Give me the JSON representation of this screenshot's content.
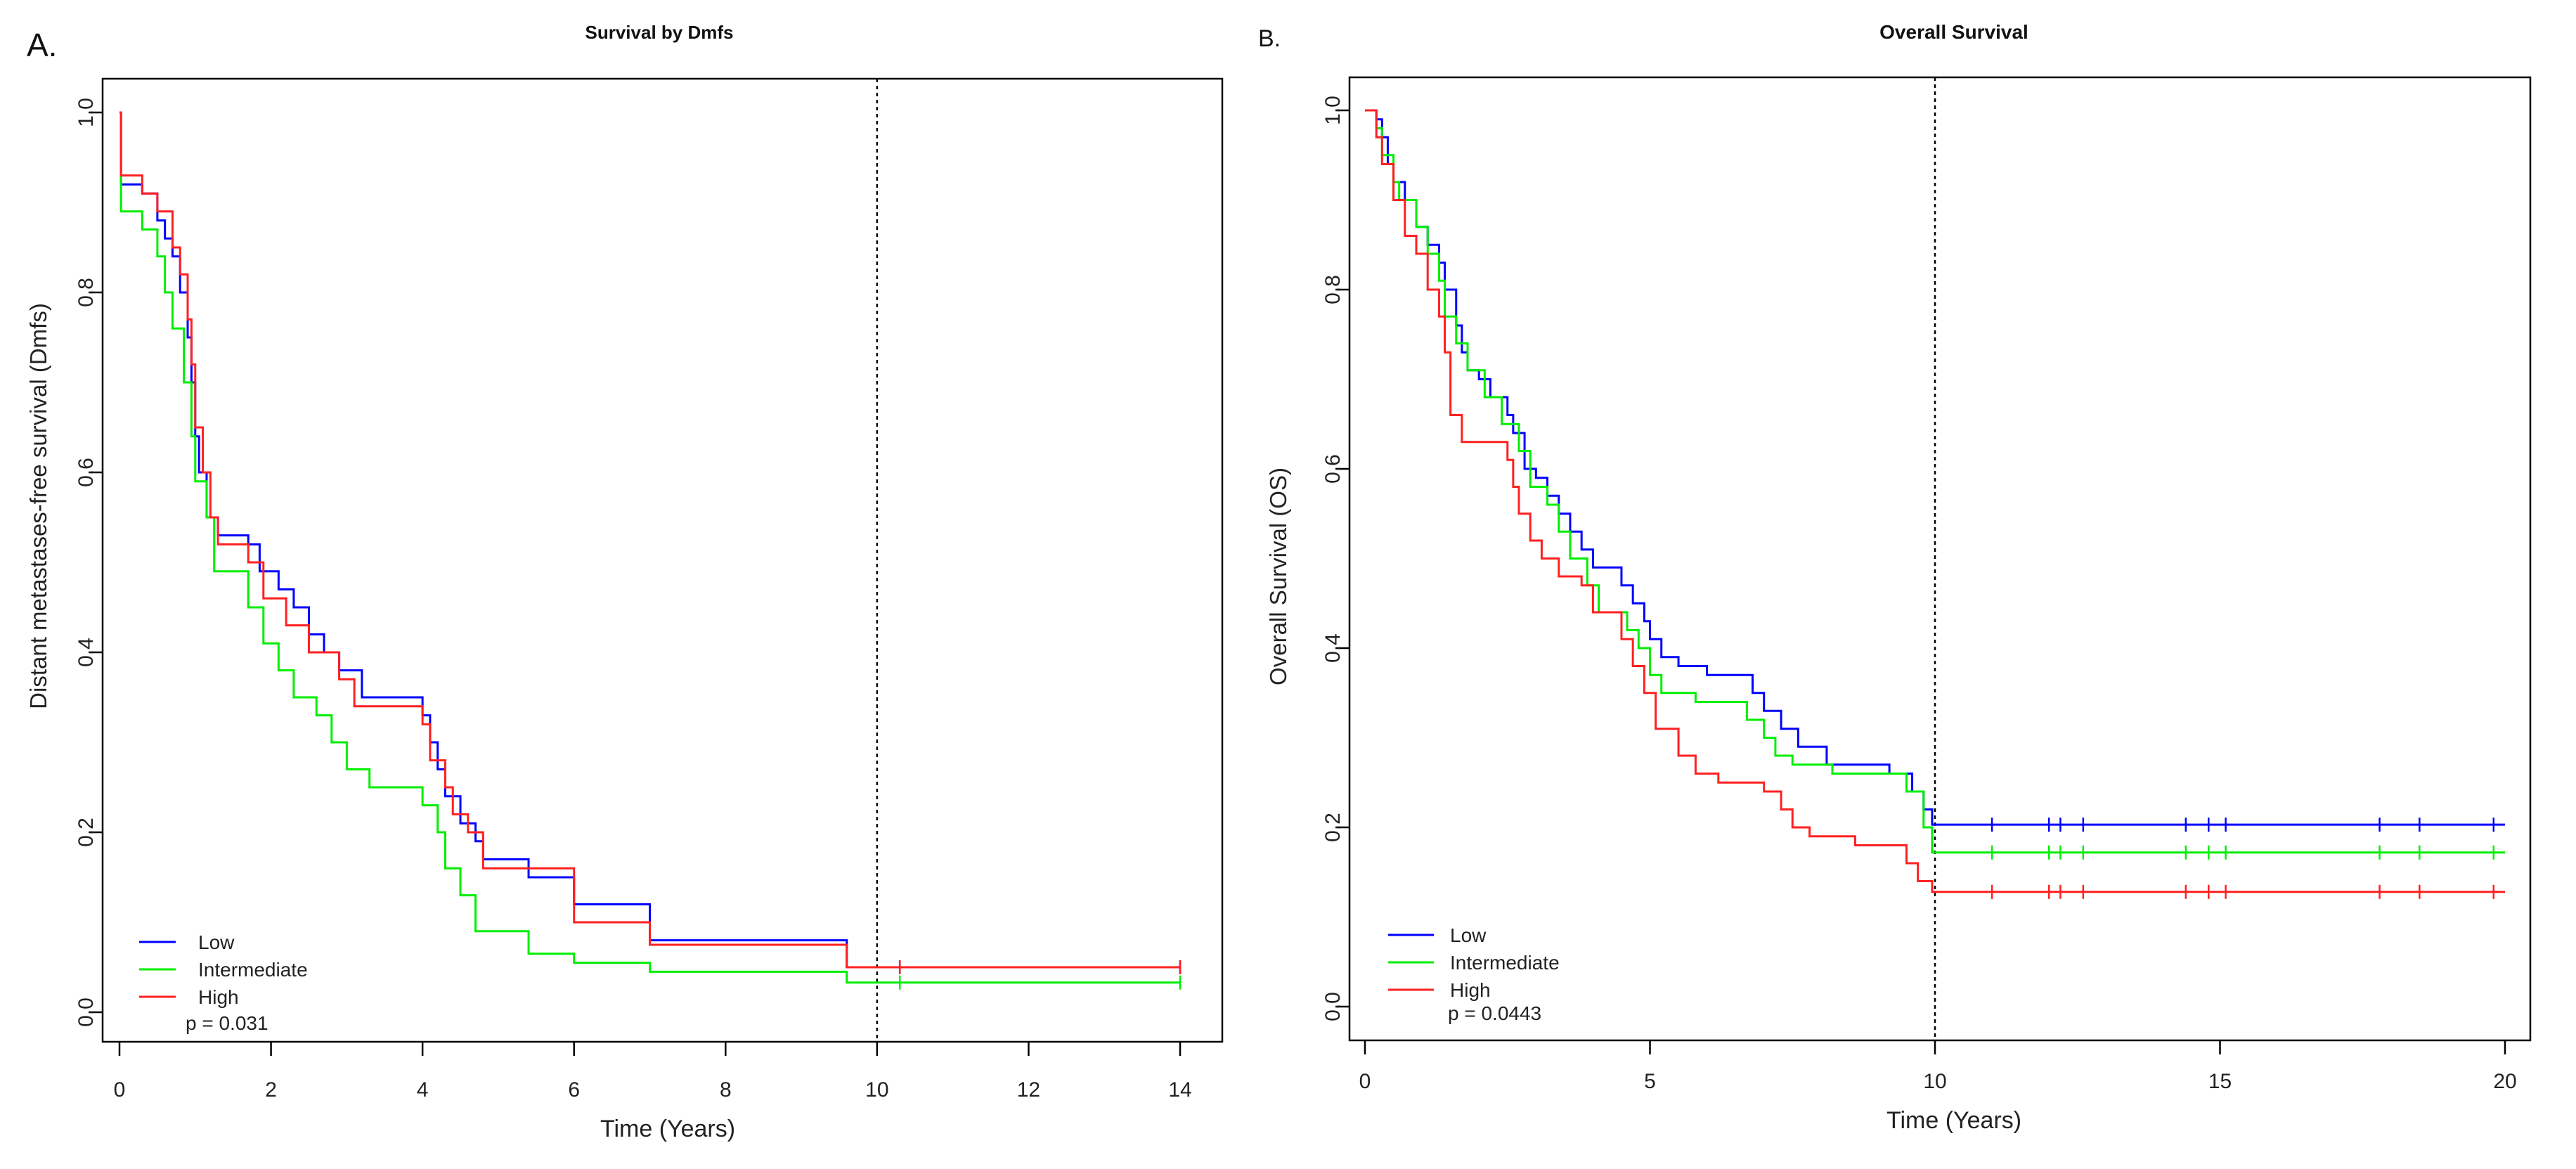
{
  "chart_data": [
    {
      "panel": "A.",
      "type": "line",
      "title": "Survival by Dmfs",
      "xlabel": "Time (Years)",
      "ylabel": "Distant metastases-free survival (Dmfs)",
      "xlim": [
        0,
        14
      ],
      "ylim": [
        0,
        1
      ],
      "xticks": [
        0,
        2,
        4,
        6,
        8,
        10,
        12,
        14
      ],
      "yticks": [
        0.0,
        0.2,
        0.4,
        0.6,
        0.8,
        1.0
      ],
      "ytick_labels": [
        "0.0",
        "0.2",
        "0.4",
        "0.6",
        "0.8",
        "1.0"
      ],
      "reference_line_x": 10,
      "grid": false,
      "legend_position": "bottom-left",
      "p_value": "p = 0.031",
      "series": [
        {
          "name": "Low",
          "color": "#0000ff",
          "steps": [
            [
              0,
              1.0
            ],
            [
              0.02,
              0.92
            ],
            [
              0.3,
              0.91
            ],
            [
              0.5,
              0.88
            ],
            [
              0.6,
              0.86
            ],
            [
              0.7,
              0.84
            ],
            [
              0.8,
              0.8
            ],
            [
              0.9,
              0.75
            ],
            [
              0.95,
              0.7
            ],
            [
              1.0,
              0.64
            ],
            [
              1.05,
              0.6
            ],
            [
              1.15,
              0.55
            ],
            [
              1.3,
              0.53
            ],
            [
              1.7,
              0.52
            ],
            [
              1.85,
              0.49
            ],
            [
              2.1,
              0.47
            ],
            [
              2.3,
              0.45
            ],
            [
              2.5,
              0.42
            ],
            [
              2.7,
              0.4
            ],
            [
              2.9,
              0.38
            ],
            [
              3.2,
              0.35
            ],
            [
              4.0,
              0.33
            ],
            [
              4.1,
              0.3
            ],
            [
              4.2,
              0.27
            ],
            [
              4.3,
              0.24
            ],
            [
              4.5,
              0.21
            ],
            [
              4.7,
              0.19
            ],
            [
              4.8,
              0.17
            ],
            [
              5.4,
              0.15
            ],
            [
              6.0,
              0.12
            ],
            [
              7.0,
              0.08
            ],
            [
              9.6,
              0.05
            ],
            [
              14.0,
              0.05
            ]
          ],
          "censor_times": [
            10.3,
            14.0
          ]
        },
        {
          "name": "Intermediate",
          "color": "#00ee00",
          "steps": [
            [
              0,
              1.0
            ],
            [
              0.02,
              0.89
            ],
            [
              0.3,
              0.87
            ],
            [
              0.5,
              0.84
            ],
            [
              0.6,
              0.8
            ],
            [
              0.7,
              0.76
            ],
            [
              0.85,
              0.7
            ],
            [
              0.95,
              0.64
            ],
            [
              1.0,
              0.59
            ],
            [
              1.15,
              0.55
            ],
            [
              1.25,
              0.49
            ],
            [
              1.7,
              0.45
            ],
            [
              1.9,
              0.41
            ],
            [
              2.1,
              0.38
            ],
            [
              2.3,
              0.35
            ],
            [
              2.6,
              0.33
            ],
            [
              2.8,
              0.3
            ],
            [
              3.0,
              0.27
            ],
            [
              3.3,
              0.25
            ],
            [
              4.0,
              0.23
            ],
            [
              4.2,
              0.2
            ],
            [
              4.3,
              0.16
            ],
            [
              4.5,
              0.13
            ],
            [
              4.7,
              0.09
            ],
            [
              5.4,
              0.065
            ],
            [
              6.0,
              0.055
            ],
            [
              7.0,
              0.045
            ],
            [
              9.6,
              0.033
            ],
            [
              14.0,
              0.033
            ]
          ],
          "censor_times": [
            10.3,
            14.0
          ]
        },
        {
          "name": "High",
          "color": "#ff2020",
          "steps": [
            [
              0,
              1.0
            ],
            [
              0.02,
              0.93
            ],
            [
              0.3,
              0.91
            ],
            [
              0.5,
              0.89
            ],
            [
              0.7,
              0.85
            ],
            [
              0.8,
              0.82
            ],
            [
              0.9,
              0.77
            ],
            [
              0.95,
              0.72
            ],
            [
              1.0,
              0.65
            ],
            [
              1.1,
              0.6
            ],
            [
              1.2,
              0.55
            ],
            [
              1.3,
              0.52
            ],
            [
              1.7,
              0.5
            ],
            [
              1.9,
              0.46
            ],
            [
              2.2,
              0.43
            ],
            [
              2.5,
              0.4
            ],
            [
              2.9,
              0.37
            ],
            [
              3.1,
              0.34
            ],
            [
              4.0,
              0.32
            ],
            [
              4.1,
              0.28
            ],
            [
              4.3,
              0.25
            ],
            [
              4.4,
              0.22
            ],
            [
              4.6,
              0.2
            ],
            [
              4.8,
              0.16
            ],
            [
              6.0,
              0.1
            ],
            [
              7.0,
              0.075
            ],
            [
              9.6,
              0.05
            ],
            [
              14.0,
              0.05
            ]
          ],
          "censor_times": [
            10.3,
            14.0
          ]
        }
      ]
    },
    {
      "panel": "B.",
      "type": "line",
      "title": "Overall Survival",
      "xlabel": "Time (Years)",
      "ylabel": "Overall Survival (OS)",
      "xlim": [
        0,
        20
      ],
      "ylim": [
        0,
        1
      ],
      "xticks": [
        0,
        5,
        10,
        15,
        20
      ],
      "yticks": [
        0.0,
        0.2,
        0.4,
        0.6,
        0.8,
        1.0
      ],
      "ytick_labels": [
        "0.0",
        "0.2",
        "0.4",
        "0.6",
        "0.8",
        "1.0"
      ],
      "reference_line_x": 10,
      "grid": false,
      "legend_position": "bottom-left",
      "p_value": "p = 0.0443",
      "series": [
        {
          "name": "Low",
          "color": "#0000ff",
          "steps": [
            [
              0,
              1.0
            ],
            [
              0.2,
              0.99
            ],
            [
              0.3,
              0.97
            ],
            [
              0.4,
              0.94
            ],
            [
              0.5,
              0.92
            ],
            [
              0.7,
              0.9
            ],
            [
              0.9,
              0.87
            ],
            [
              1.1,
              0.85
            ],
            [
              1.3,
              0.83
            ],
            [
              1.4,
              0.8
            ],
            [
              1.6,
              0.76
            ],
            [
              1.7,
              0.73
            ],
            [
              1.8,
              0.71
            ],
            [
              2.0,
              0.7
            ],
            [
              2.2,
              0.68
            ],
            [
              2.5,
              0.66
            ],
            [
              2.6,
              0.64
            ],
            [
              2.8,
              0.6
            ],
            [
              3.0,
              0.59
            ],
            [
              3.2,
              0.57
            ],
            [
              3.4,
              0.55
            ],
            [
              3.6,
              0.53
            ],
            [
              3.8,
              0.51
            ],
            [
              4.0,
              0.49
            ],
            [
              4.5,
              0.47
            ],
            [
              4.7,
              0.45
            ],
            [
              4.9,
              0.43
            ],
            [
              5.0,
              0.41
            ],
            [
              5.2,
              0.39
            ],
            [
              5.5,
              0.38
            ],
            [
              6.0,
              0.37
            ],
            [
              6.8,
              0.35
            ],
            [
              7.0,
              0.33
            ],
            [
              7.3,
              0.31
            ],
            [
              7.6,
              0.29
            ],
            [
              8.1,
              0.27
            ],
            [
              9.2,
              0.26
            ],
            [
              9.6,
              0.24
            ],
            [
              9.8,
              0.22
            ],
            [
              9.95,
              0.203
            ],
            [
              20.0,
              0.203
            ]
          ],
          "censor_times": [
            11.0,
            12.0,
            12.2,
            12.6,
            14.4,
            14.8,
            15.1,
            17.8,
            18.5,
            19.8
          ]
        },
        {
          "name": "Intermediate",
          "color": "#00ee00",
          "steps": [
            [
              0,
              1.0
            ],
            [
              0.2,
              0.98
            ],
            [
              0.3,
              0.95
            ],
            [
              0.5,
              0.92
            ],
            [
              0.6,
              0.9
            ],
            [
              0.9,
              0.87
            ],
            [
              1.1,
              0.84
            ],
            [
              1.3,
              0.81
            ],
            [
              1.4,
              0.77
            ],
            [
              1.6,
              0.74
            ],
            [
              1.8,
              0.71
            ],
            [
              2.1,
              0.68
            ],
            [
              2.4,
              0.65
            ],
            [
              2.7,
              0.62
            ],
            [
              2.9,
              0.58
            ],
            [
              3.2,
              0.56
            ],
            [
              3.4,
              0.53
            ],
            [
              3.6,
              0.5
            ],
            [
              3.9,
              0.47
            ],
            [
              4.1,
              0.44
            ],
            [
              4.6,
              0.42
            ],
            [
              4.8,
              0.4
            ],
            [
              5.0,
              0.37
            ],
            [
              5.2,
              0.35
            ],
            [
              5.8,
              0.34
            ],
            [
              6.7,
              0.32
            ],
            [
              7.0,
              0.3
            ],
            [
              7.2,
              0.28
            ],
            [
              7.5,
              0.27
            ],
            [
              8.2,
              0.26
            ],
            [
              9.5,
              0.24
            ],
            [
              9.8,
              0.2
            ],
            [
              9.95,
              0.172
            ],
            [
              20.0,
              0.172
            ]
          ],
          "censor_times": [
            11.0,
            12.0,
            12.2,
            12.6,
            14.4,
            14.8,
            15.1,
            17.8,
            18.5,
            19.8
          ]
        },
        {
          "name": "High",
          "color": "#ff2020",
          "steps": [
            [
              0,
              1.0
            ],
            [
              0.2,
              0.97
            ],
            [
              0.3,
              0.94
            ],
            [
              0.5,
              0.9
            ],
            [
              0.7,
              0.86
            ],
            [
              0.9,
              0.84
            ],
            [
              1.1,
              0.8
            ],
            [
              1.3,
              0.77
            ],
            [
              1.4,
              0.73
            ],
            [
              1.5,
              0.66
            ],
            [
              1.7,
              0.63
            ],
            [
              2.5,
              0.61
            ],
            [
              2.6,
              0.58
            ],
            [
              2.7,
              0.55
            ],
            [
              2.9,
              0.52
            ],
            [
              3.1,
              0.5
            ],
            [
              3.4,
              0.48
            ],
            [
              3.8,
              0.47
            ],
            [
              4.0,
              0.44
            ],
            [
              4.5,
              0.41
            ],
            [
              4.7,
              0.38
            ],
            [
              4.9,
              0.35
            ],
            [
              5.1,
              0.31
            ],
            [
              5.5,
              0.28
            ],
            [
              5.8,
              0.26
            ],
            [
              6.2,
              0.25
            ],
            [
              7.0,
              0.24
            ],
            [
              7.3,
              0.22
            ],
            [
              7.5,
              0.2
            ],
            [
              7.8,
              0.19
            ],
            [
              8.6,
              0.18
            ],
            [
              9.5,
              0.16
            ],
            [
              9.7,
              0.14
            ],
            [
              9.95,
              0.128
            ],
            [
              20.0,
              0.128
            ]
          ],
          "censor_times": [
            11.0,
            12.0,
            12.2,
            12.6,
            14.4,
            14.8,
            15.1,
            17.8,
            18.5,
            19.8
          ]
        }
      ]
    }
  ]
}
